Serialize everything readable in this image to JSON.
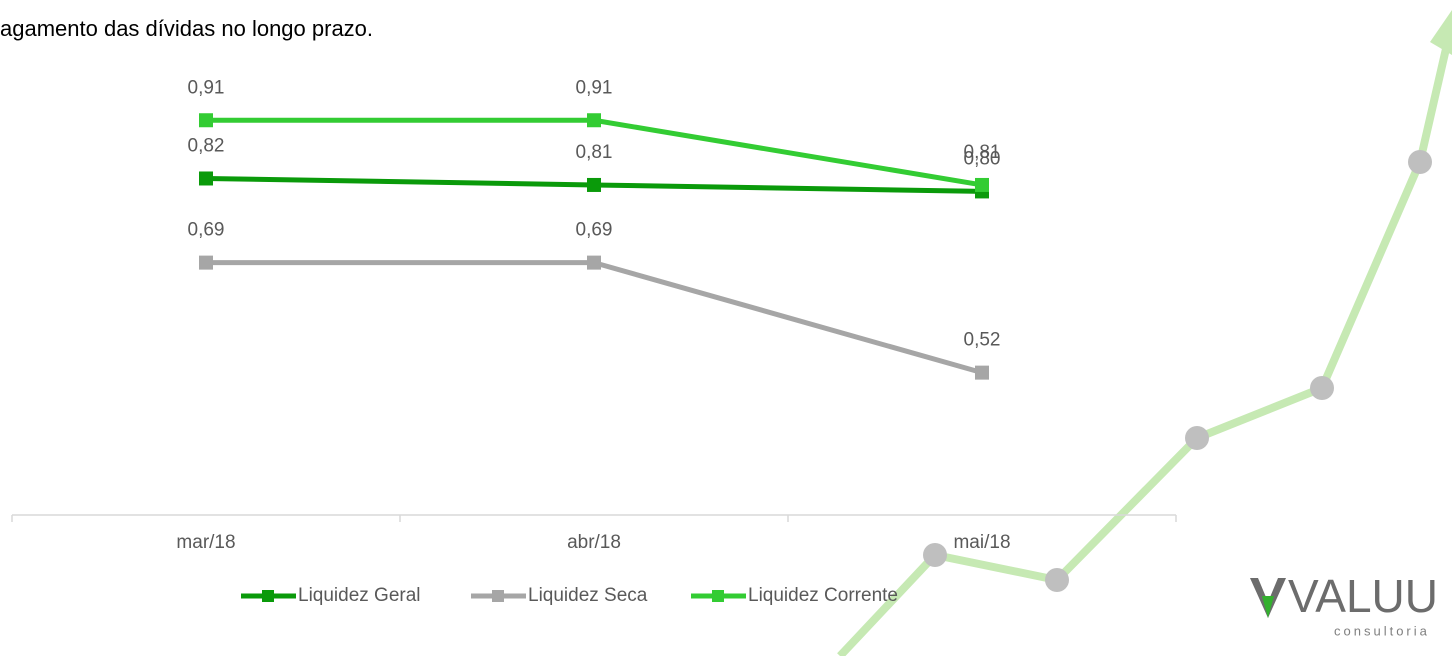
{
  "text": "agamento das dívidas no longo prazo.",
  "logo": {
    "name": "VALUU",
    "tagline": "consultoria"
  },
  "chart_data": {
    "type": "line",
    "categories": [
      "mar/18",
      "abr/18",
      "mai/18"
    ],
    "ylim": [
      0.3,
      1.0
    ],
    "series": [
      {
        "name": "Liquidez Geral",
        "color": "#0a9a0a",
        "values": [
          0.82,
          0.81,
          0.8
        ],
        "value_labels": [
          "0,82",
          "0,81",
          "0,80"
        ]
      },
      {
        "name": "Liquidez Seca",
        "color": "#a6a6a6",
        "values": [
          0.69,
          0.69,
          0.52
        ],
        "value_labels": [
          "0,69",
          "0,69",
          "0,52"
        ]
      },
      {
        "name": "Liquidez Corrente",
        "color": "#33cc33",
        "values": [
          0.91,
          0.91,
          0.81
        ],
        "value_labels": [
          "0,91",
          "0,91",
          "0,81"
        ]
      }
    ]
  }
}
